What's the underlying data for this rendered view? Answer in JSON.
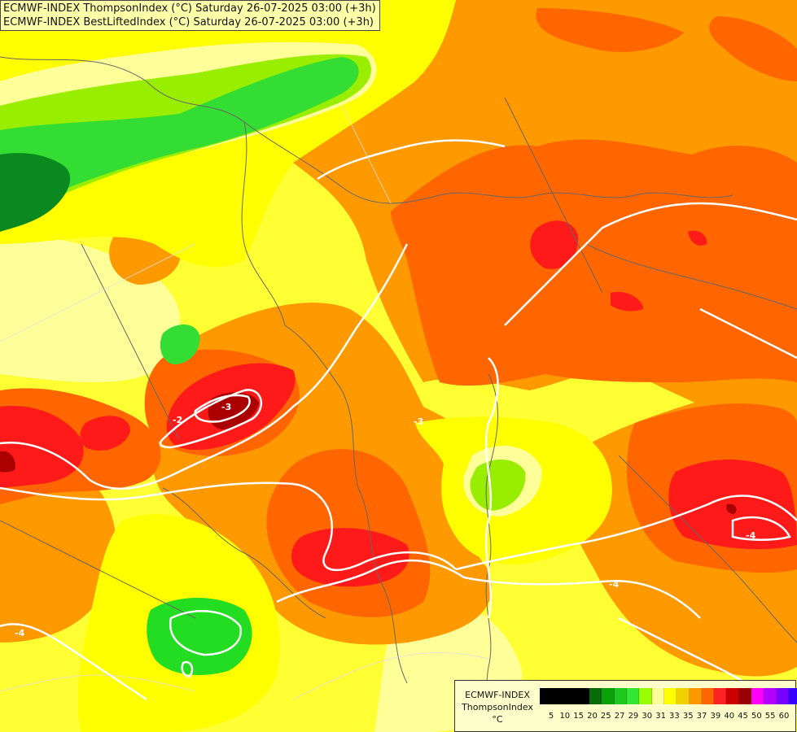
{
  "header": {
    "line1": "ECMWF-INDEX ThompsonIndex (°C) Saturday 26-07-2025 03:00 (+3h)",
    "line2": "ECMWF-INDEX BestLiftedIndex (°C) Saturday 26-07-2025 03:00 (+3h)"
  },
  "legend": {
    "line1": "ECMWF-INDEX",
    "line2": "ThompsonIndex",
    "line3": "°C",
    "colors": [
      "#000000",
      "#000000",
      "#000000",
      "#000000",
      "#0a6b0a",
      "#0aa00a",
      "#1ec81e",
      "#33e633",
      "#99ff00",
      "#ffff99",
      "#ffff00",
      "#f0d000",
      "#ff9900",
      "#ff6600",
      "#ff2222",
      "#cc0000",
      "#990000",
      "#ff00ff",
      "#b300ff",
      "#7700ff",
      "#3300ff"
    ],
    "ticks": [
      "5",
      "10",
      "15",
      "20",
      "25",
      "27",
      "29",
      "30",
      "31",
      "33",
      "35",
      "37",
      "39",
      "40",
      "45",
      "50",
      "55",
      "60"
    ]
  },
  "contour_labels": [
    "-2",
    "-3",
    "-3",
    "-4",
    "-4",
    "-4"
  ],
  "palette": {
    "dark_green": "#0a8a1e",
    "green": "#22dd22",
    "lime": "#99ee00",
    "pale_yellow": "#ffff99",
    "yellow": "#ffff00",
    "gold": "#ffcc00",
    "orange": "#ff9900",
    "dark_orange": "#ff6600",
    "red": "#ff1a1a",
    "dark_red": "#aa0000"
  }
}
